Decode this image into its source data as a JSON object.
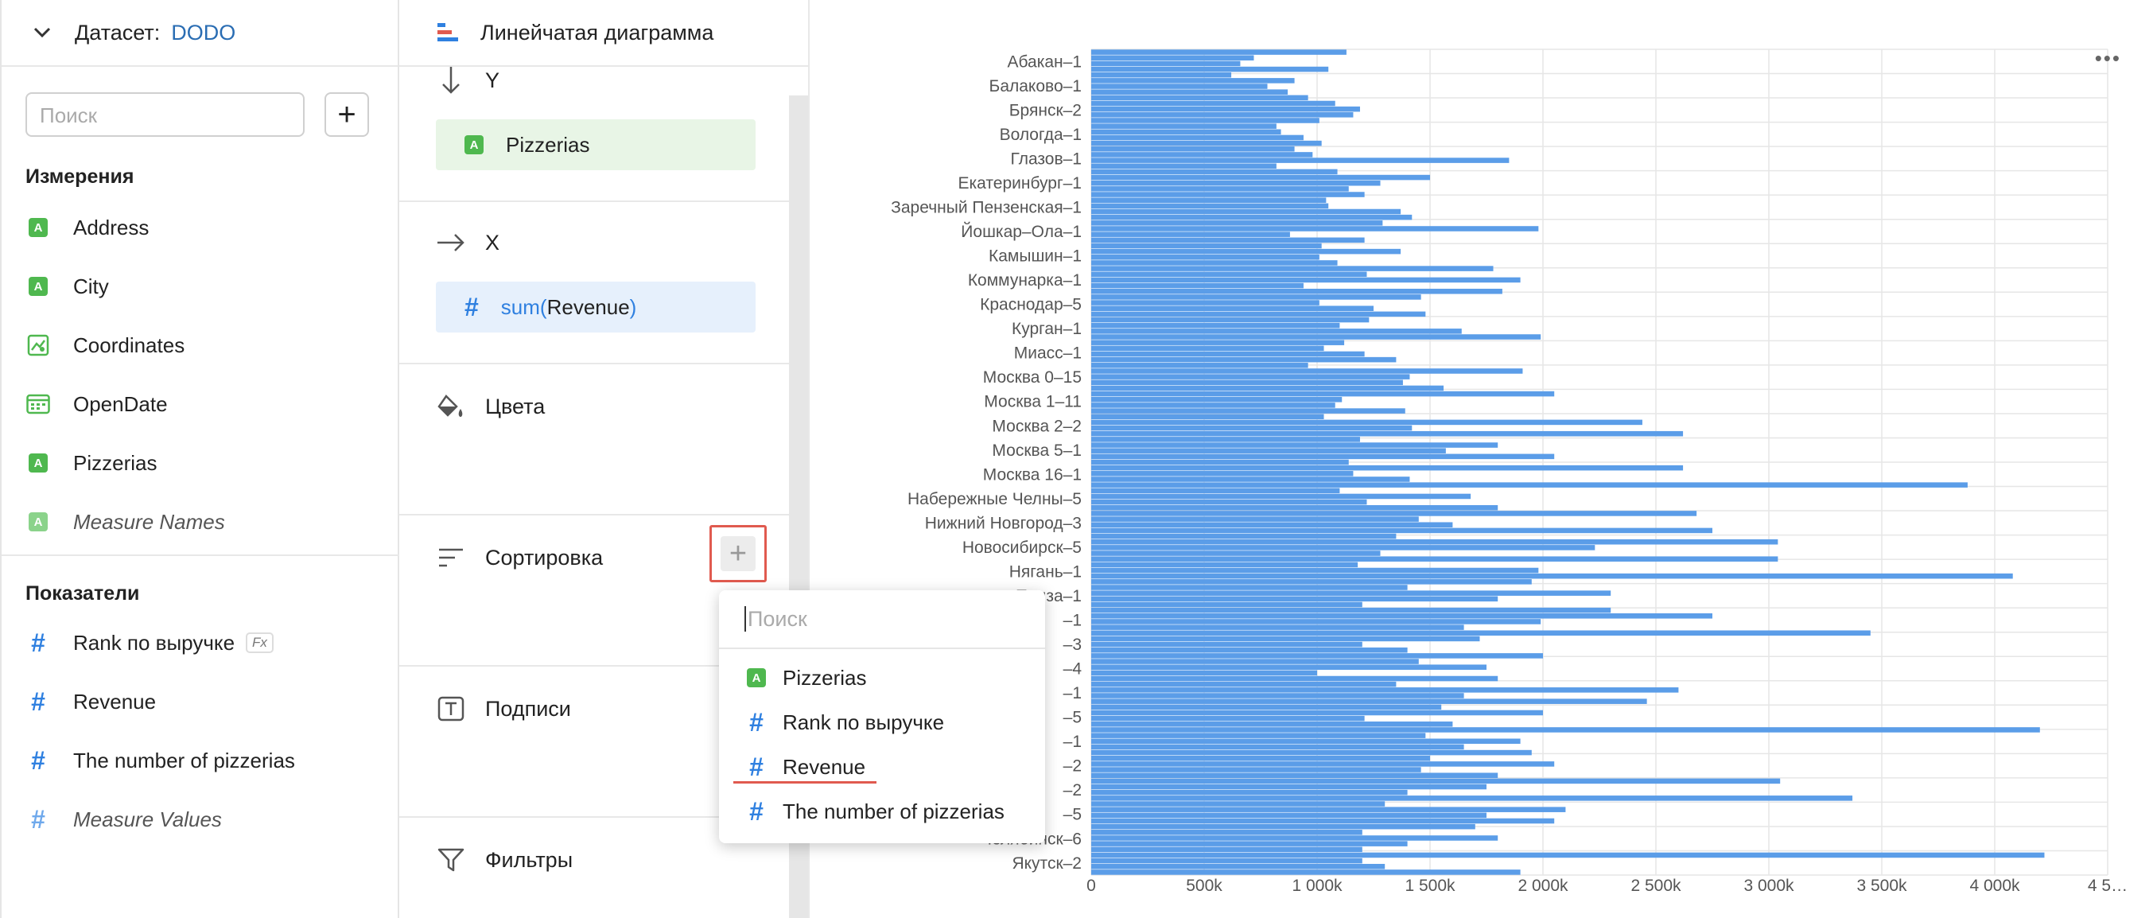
{
  "dataset": {
    "label": "Датасет:",
    "name": "DODO"
  },
  "search": {
    "placeholder": "Поиск"
  },
  "dimensions": {
    "title": "Измерения",
    "items": [
      {
        "label": "Address",
        "type": "text"
      },
      {
        "label": "City",
        "type": "text"
      },
      {
        "label": "Coordinates",
        "type": "geo"
      },
      {
        "label": "OpenDate",
        "type": "date"
      },
      {
        "label": "Pizzerias",
        "type": "text"
      },
      {
        "label": "Measure Names",
        "type": "text-italic"
      }
    ]
  },
  "measures": {
    "title": "Показатели",
    "items": [
      {
        "label": "Rank по выручке",
        "formula": "Fx"
      },
      {
        "label": "Revenue"
      },
      {
        "label": "The number of pizzerias"
      },
      {
        "label": "Measure Values",
        "italic": true
      }
    ]
  },
  "wizard": {
    "chart_type": "Линейчатая диаграмма",
    "y": {
      "label": "Y",
      "field": "Pizzerias"
    },
    "x": {
      "label": "X",
      "func": "sum(",
      "field": "Revenue",
      "close": ")"
    },
    "colors": {
      "label": "Цвета"
    },
    "sort": {
      "label": "Сортировка"
    },
    "labels": {
      "label": "Подписи"
    },
    "filters": {
      "label": "Фильтры"
    }
  },
  "dropdown": {
    "placeholder": "Поиск",
    "items": [
      {
        "label": "Pizzerias",
        "type": "text"
      },
      {
        "label": "Rank по выручке",
        "type": "number"
      },
      {
        "label": "Revenue",
        "type": "number"
      },
      {
        "label": "The number of pizzerias",
        "type": "number"
      }
    ]
  },
  "chart_menu": "•••",
  "colors": {
    "bar": "#5b9de8",
    "accent_red": "#e05a4f",
    "green": "#4fb84f",
    "blue": "#2f80e0"
  },
  "chart_data": {
    "type": "bar",
    "orientation": "horizontal",
    "y_tick_labels": [
      "Абакан–1",
      "Балаково–1",
      "Брянск–2",
      "Вологда–1",
      "Глазов–1",
      "Екатеринбург–1",
      "Заречный Пензенская–1",
      "Йошкар–Ола–1",
      "Камышин–1",
      "Коммунарка–1",
      "Краснодар–5",
      "Курган–1",
      "Миасс–1",
      "Москва 0–15",
      "Москва 1–11",
      "Москва 2–2",
      "Москва 5–1",
      "Москва 16–1",
      "Набережные Челны–5",
      "Нижний Новгород–3",
      "Новосибирск–5",
      "Нягань–1",
      "Пенза–1",
      "–1",
      "–3",
      "–4",
      "–1",
      "–5",
      "–1",
      "–2",
      "–2",
      "–5",
      "Челябинск–6",
      "Якутск–2"
    ],
    "x_ticks": [
      "0",
      "500k",
      "1 000k",
      "1 500k",
      "2 000k",
      "2 500k",
      "3 000k",
      "3 500k",
      "4 000k",
      "4 5…"
    ],
    "xlim": [
      0,
      4500000
    ],
    "approx_values_thousands": [
      1130,
      720,
      660,
      1050,
      620,
      900,
      780,
      870,
      960,
      1080,
      1190,
      1160,
      1010,
      820,
      840,
      940,
      1020,
      900,
      980,
      1850,
      820,
      1090,
      1500,
      1280,
      1140,
      1210,
      1040,
      1050,
      1370,
      1420,
      1290,
      1980,
      880,
      1210,
      1020,
      1370,
      1010,
      1090,
      1780,
      1220,
      1900,
      940,
      1820,
      1460,
      1010,
      1250,
      1480,
      1230,
      1100,
      1640,
      1990,
      1120,
      1030,
      1210,
      1350,
      960,
      1910,
      1410,
      1380,
      1560,
      2050,
      1110,
      1080,
      1390,
      1030,
      2440,
      1420,
      2620,
      1190,
      1800,
      1570,
      2050,
      1140,
      2620,
      1160,
      1410,
      3880,
      1100,
      1680,
      1220,
      1800,
      2680,
      1450,
      1600,
      2750,
      1350,
      3040,
      2230,
      1280,
      3040,
      1180,
      1980,
      4080,
      1950,
      1400,
      2300,
      1800,
      1200,
      2300,
      2750,
      1990,
      1650,
      3450,
      1720,
      1200,
      1400,
      2000,
      1450,
      1750,
      1000,
      1800,
      1350,
      2600,
      1650,
      2460,
      1550,
      2000,
      1210,
      1600,
      4200,
      1480,
      1900,
      1650,
      1950,
      1500,
      2050,
      1460,
      1800,
      3050,
      1750,
      1400,
      3370,
      1300,
      2100,
      1750,
      2050,
      1700,
      1200,
      1800,
      1400,
      1200,
      4220,
      1200,
      1300,
      1900
    ]
  }
}
